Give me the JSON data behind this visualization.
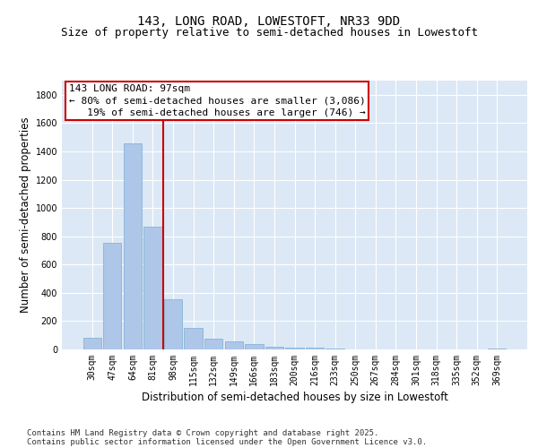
{
  "title_line1": "143, LONG ROAD, LOWESTOFT, NR33 9DD",
  "title_line2": "Size of property relative to semi-detached houses in Lowestoft",
  "xlabel": "Distribution of semi-detached houses by size in Lowestoft",
  "ylabel": "Number of semi-detached properties",
  "categories": [
    "30sqm",
    "47sqm",
    "64sqm",
    "81sqm",
    "98sqm",
    "115sqm",
    "132sqm",
    "149sqm",
    "166sqm",
    "183sqm",
    "200sqm",
    "216sqm",
    "233sqm",
    "250sqm",
    "267sqm",
    "284sqm",
    "301sqm",
    "318sqm",
    "335sqm",
    "352sqm",
    "369sqm"
  ],
  "values": [
    82,
    755,
    1455,
    865,
    355,
    155,
    75,
    55,
    35,
    20,
    13,
    10,
    5,
    3,
    2,
    1,
    1,
    0,
    0,
    0,
    8
  ],
  "bar_color": "#aec6e8",
  "bar_edgecolor": "#7aadd4",
  "vline_index": 4,
  "vline_color": "#cc0000",
  "annotation_line1": "143 LONG ROAD: 97sqm",
  "annotation_line2": "← 80% of semi-detached houses are smaller (3,086)",
  "annotation_line3": "   19% of semi-detached houses are larger (746) →",
  "annotation_box_color": "#ffffff",
  "annotation_box_edgecolor": "#cc0000",
  "ylim": [
    0,
    1900
  ],
  "yticks": [
    0,
    200,
    400,
    600,
    800,
    1000,
    1200,
    1400,
    1600,
    1800
  ],
  "background_color": "#dce8f5",
  "grid_color": "#ffffff",
  "footer_line1": "Contains HM Land Registry data © Crown copyright and database right 2025.",
  "footer_line2": "Contains public sector information licensed under the Open Government Licence v3.0.",
  "title_fontsize": 10,
  "subtitle_fontsize": 9,
  "axis_label_fontsize": 8.5,
  "tick_fontsize": 7,
  "annotation_fontsize": 8,
  "footer_fontsize": 6.5
}
